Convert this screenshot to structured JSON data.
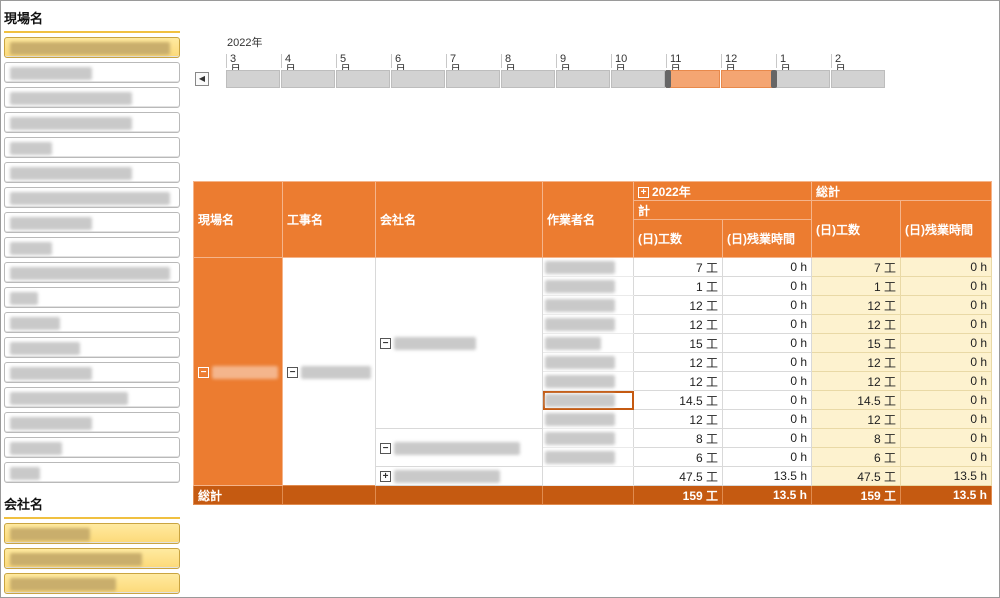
{
  "slicers": {
    "site": {
      "title": "現場名",
      "items": [
        {
          "selected": true,
          "w": 160
        },
        {
          "selected": false,
          "w": 82
        },
        {
          "selected": false,
          "w": 122
        },
        {
          "selected": false,
          "w": 122
        },
        {
          "selected": false,
          "w": 42
        },
        {
          "selected": false,
          "w": 122
        },
        {
          "selected": false,
          "w": 160
        },
        {
          "selected": false,
          "w": 82
        },
        {
          "selected": false,
          "w": 42
        },
        {
          "selected": false,
          "w": 160
        },
        {
          "selected": false,
          "w": 28
        },
        {
          "selected": false,
          "w": 50
        },
        {
          "selected": false,
          "w": 70
        },
        {
          "selected": false,
          "w": 82
        },
        {
          "selected": false,
          "w": 118
        },
        {
          "selected": false,
          "w": 82
        },
        {
          "selected": false,
          "w": 52
        },
        {
          "selected": false,
          "w": 30
        }
      ]
    },
    "company": {
      "title": "会社名",
      "items": [
        {
          "selected": true,
          "w": 80
        },
        {
          "selected": true,
          "w": 132
        },
        {
          "selected": true,
          "w": 106
        }
      ]
    }
  },
  "timeline": {
    "year": "2022年",
    "months": [
      "3月",
      "4月",
      "5月",
      "6月",
      "7月",
      "8月",
      "9月",
      "10月",
      "11月",
      "12月",
      "1月",
      "2月"
    ],
    "selected_months": [
      "11月",
      "12月"
    ],
    "scroll_left": "◀"
  },
  "pivot": {
    "headers": {
      "site": "現場名",
      "work": "工事名",
      "company": "会社名",
      "worker": "作業者名",
      "year": "2022年",
      "subtotal": "計",
      "grand": "総計",
      "days": "(日)工数",
      "overtime": "(日)残業時間"
    },
    "rows": [
      {
        "days": "7 工",
        "ot": "0 h"
      },
      {
        "days": "1 工",
        "ot": "0 h"
      },
      {
        "days": "12 工",
        "ot": "0 h"
      },
      {
        "days": "12 工",
        "ot": "0 h"
      },
      {
        "days": "15 工",
        "ot": "0 h"
      },
      {
        "days": "12 工",
        "ot": "0 h"
      },
      {
        "days": "12 工",
        "ot": "0 h"
      },
      {
        "days": "14.5 工",
        "ot": "0 h"
      },
      {
        "days": "12 工",
        "ot": "0 h"
      },
      {
        "days": "8 工",
        "ot": "0 h"
      },
      {
        "days": "6 工",
        "ot": "0 h"
      },
      {
        "days": "47.5 工",
        "ot": "13.5 h"
      }
    ],
    "grand_total": {
      "label": "総計",
      "days": "159 工",
      "ot": "13.5 h"
    },
    "expand_minus": "−",
    "expand_plus": "+"
  }
}
